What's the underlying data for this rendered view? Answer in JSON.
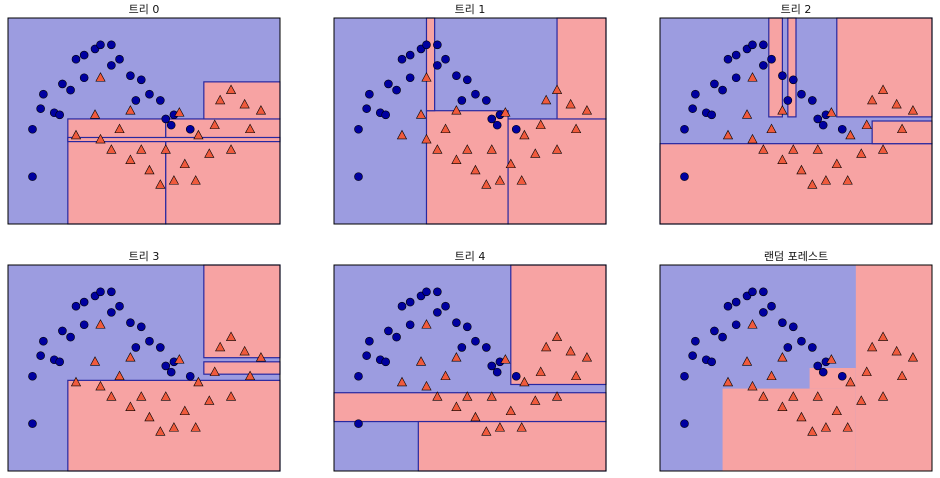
{
  "chart_data": [
    {
      "type": "scatter",
      "title": "트리 0",
      "xlim": [
        0,
        100
      ],
      "ylim": [
        0,
        100
      ],
      "background": "#9c9ce0",
      "region_color": "#f7a3a3",
      "edge_color": "#2828a0",
      "regions": [
        {
          "x": [
            22,
            58
          ],
          "y": [
            0,
            51
          ]
        },
        {
          "x": [
            58,
            100
          ],
          "y": [
            0,
            51
          ]
        },
        {
          "x": [
            72,
            100
          ],
          "y": [
            51,
            69
          ]
        },
        {
          "x": [
            22,
            100
          ],
          "y": [
            40,
            42
          ]
        }
      ],
      "series": [
        {
          "marker": "circle",
          "color": "#0000a0",
          "x": [
            9,
            9,
            12,
            13,
            17,
            20,
            23,
            25,
            28,
            32,
            34,
            38,
            41,
            45,
            49,
            52,
            56,
            58,
            60,
            61,
            67,
            19,
            38,
            47,
            28
          ],
          "y": [
            23,
            46,
            56,
            63,
            54,
            68,
            65,
            80,
            82,
            85,
            87,
            87,
            80,
            72,
            70,
            63,
            60,
            51,
            48,
            53,
            46,
            53,
            77,
            60,
            71
          ]
        },
        {
          "marker": "triangle",
          "color": "#f05a3c",
          "x": [
            34,
            45,
            63,
            78,
            82,
            87,
            93,
            76,
            70,
            74,
            65,
            61,
            56,
            52,
            45,
            38,
            34,
            41,
            25,
            32,
            49,
            58,
            69,
            82,
            89
          ],
          "y": [
            71,
            55,
            54,
            60,
            65,
            58,
            55,
            48,
            43,
            34,
            29,
            21,
            19,
            26,
            31,
            36,
            41,
            46,
            43,
            53,
            36,
            36,
            21,
            36,
            46
          ]
        }
      ]
    },
    {
      "type": "scatter",
      "title": "트리 1",
      "xlim": [
        0,
        100
      ],
      "ylim": [
        0,
        100
      ],
      "background": "#9c9ce0",
      "region_color": "#f7a3a3",
      "edge_color": "#2828a0",
      "regions": [
        {
          "x": [
            34,
            64
          ],
          "y": [
            0,
            55
          ]
        },
        {
          "x": [
            64,
            100
          ],
          "y": [
            0,
            51
          ]
        },
        {
          "x": [
            82,
            100
          ],
          "y": [
            51,
            100
          ]
        },
        {
          "x": [
            34,
            37
          ],
          "y": [
            55,
            100
          ]
        }
      ],
      "series": [
        {
          "marker": "circle",
          "color": "#0000a0",
          "x": [
            9,
            9,
            12,
            13,
            17,
            20,
            23,
            25,
            28,
            32,
            34,
            38,
            41,
            45,
            49,
            52,
            56,
            58,
            60,
            61,
            67,
            19,
            38,
            47,
            28
          ],
          "y": [
            23,
            46,
            56,
            63,
            54,
            68,
            65,
            80,
            82,
            85,
            87,
            87,
            80,
            72,
            70,
            63,
            60,
            51,
            48,
            53,
            46,
            53,
            77,
            60,
            71
          ]
        },
        {
          "marker": "triangle",
          "color": "#f05a3c",
          "x": [
            34,
            45,
            63,
            78,
            82,
            87,
            93,
            76,
            70,
            74,
            65,
            61,
            56,
            52,
            45,
            38,
            34,
            41,
            25,
            32,
            49,
            58,
            69,
            82,
            89
          ],
          "y": [
            71,
            55,
            54,
            60,
            65,
            58,
            55,
            48,
            43,
            34,
            29,
            21,
            19,
            26,
            31,
            36,
            41,
            46,
            43,
            53,
            36,
            36,
            21,
            36,
            46
          ]
        }
      ]
    },
    {
      "type": "scatter",
      "title": "트리 2",
      "xlim": [
        0,
        100
      ],
      "ylim": [
        0,
        100
      ],
      "background": "#9c9ce0",
      "region_color": "#f7a3a3",
      "edge_color": "#2828a0",
      "regions": [
        {
          "x": [
            65,
            100
          ],
          "y": [
            52,
            100
          ]
        },
        {
          "x": [
            0,
            100
          ],
          "y": [
            0,
            39
          ]
        },
        {
          "x": [
            78,
            100
          ],
          "y": [
            39,
            50
          ]
        },
        {
          "x": [
            40,
            45
          ],
          "y": [
            52,
            100
          ]
        },
        {
          "x": [
            47,
            50
          ],
          "y": [
            52,
            100
          ]
        }
      ],
      "series": [
        {
          "marker": "circle",
          "color": "#0000a0",
          "x": [
            9,
            9,
            12,
            13,
            17,
            20,
            23,
            25,
            28,
            32,
            34,
            38,
            41,
            45,
            49,
            52,
            56,
            58,
            60,
            61,
            67,
            19,
            38,
            47,
            28
          ],
          "y": [
            23,
            46,
            56,
            63,
            54,
            68,
            65,
            80,
            82,
            85,
            87,
            87,
            80,
            72,
            70,
            63,
            60,
            51,
            48,
            53,
            46,
            53,
            77,
            60,
            71
          ]
        },
        {
          "marker": "triangle",
          "color": "#f05a3c",
          "x": [
            34,
            45,
            63,
            78,
            82,
            87,
            93,
            76,
            70,
            74,
            65,
            61,
            56,
            52,
            45,
            38,
            34,
            41,
            25,
            32,
            49,
            58,
            69,
            82,
            89
          ],
          "y": [
            71,
            55,
            54,
            60,
            65,
            58,
            55,
            48,
            43,
            34,
            29,
            21,
            19,
            26,
            31,
            36,
            41,
            46,
            43,
            53,
            36,
            36,
            21,
            36,
            46
          ]
        }
      ]
    },
    {
      "type": "scatter",
      "title": "트리 3",
      "xlim": [
        0,
        100
      ],
      "ylim": [
        0,
        100
      ],
      "background": "#9c9ce0",
      "region_color": "#f7a3a3",
      "edge_color": "#2828a0",
      "regions": [
        {
          "x": [
            72,
            100
          ],
          "y": [
            55,
            100
          ]
        },
        {
          "x": [
            22,
            100
          ],
          "y": [
            0,
            44
          ]
        },
        {
          "x": [
            72,
            100
          ],
          "y": [
            47,
            53
          ]
        }
      ],
      "series": [
        {
          "marker": "circle",
          "color": "#0000a0",
          "x": [
            9,
            9,
            12,
            13,
            17,
            20,
            23,
            25,
            28,
            32,
            34,
            38,
            41,
            45,
            49,
            52,
            56,
            58,
            60,
            61,
            67,
            19,
            38,
            47,
            28
          ],
          "y": [
            23,
            46,
            56,
            63,
            54,
            68,
            65,
            80,
            82,
            85,
            87,
            87,
            80,
            72,
            70,
            63,
            60,
            51,
            48,
            53,
            46,
            53,
            77,
            60,
            71
          ]
        },
        {
          "marker": "triangle",
          "color": "#f05a3c",
          "x": [
            34,
            45,
            63,
            78,
            82,
            87,
            93,
            76,
            70,
            74,
            65,
            61,
            56,
            52,
            45,
            38,
            34,
            41,
            25,
            32,
            49,
            58,
            69,
            82,
            89
          ],
          "y": [
            71,
            55,
            54,
            60,
            65,
            58,
            55,
            48,
            43,
            34,
            29,
            21,
            19,
            26,
            31,
            36,
            41,
            46,
            43,
            53,
            36,
            36,
            21,
            36,
            46
          ]
        }
      ]
    },
    {
      "type": "scatter",
      "title": "트리 4",
      "xlim": [
        0,
        100
      ],
      "ylim": [
        0,
        100
      ],
      "background": "#9c9ce0",
      "region_color": "#f7a3a3",
      "edge_color": "#2828a0",
      "regions": [
        {
          "x": [
            65,
            100
          ],
          "y": [
            42,
            100
          ]
        },
        {
          "x": [
            0,
            100
          ],
          "y": [
            24,
            38
          ]
        },
        {
          "x": [
            31,
            100
          ],
          "y": [
            0,
            24
          ]
        }
      ],
      "series": [
        {
          "marker": "circle",
          "color": "#0000a0",
          "x": [
            9,
            9,
            12,
            13,
            17,
            20,
            23,
            25,
            28,
            32,
            34,
            38,
            41,
            45,
            49,
            52,
            56,
            58,
            60,
            61,
            67,
            19,
            38,
            47,
            28
          ],
          "y": [
            23,
            46,
            56,
            63,
            54,
            68,
            65,
            80,
            82,
            85,
            87,
            87,
            80,
            72,
            70,
            63,
            60,
            51,
            48,
            53,
            46,
            53,
            77,
            60,
            71
          ]
        },
        {
          "marker": "triangle",
          "color": "#f05a3c",
          "x": [
            34,
            45,
            63,
            78,
            82,
            87,
            93,
            76,
            70,
            74,
            65,
            61,
            56,
            52,
            45,
            38,
            34,
            41,
            25,
            32,
            49,
            58,
            69,
            82,
            89
          ],
          "y": [
            71,
            55,
            54,
            60,
            65,
            58,
            55,
            48,
            43,
            34,
            29,
            21,
            19,
            26,
            31,
            36,
            41,
            46,
            43,
            53,
            36,
            36,
            21,
            36,
            46
          ]
        }
      ]
    },
    {
      "type": "scatter",
      "title": "랜덤 포레스트",
      "xlim": [
        0,
        100
      ],
      "ylim": [
        0,
        100
      ],
      "background": "#9c9ce0",
      "region_color": "#f7a3a3",
      "edge_color": "none",
      "regions": [
        {
          "x": [
            72,
            100
          ],
          "y": [
            0,
            100
          ]
        },
        {
          "x": [
            23,
            72
          ],
          "y": [
            0,
            40
          ]
        },
        {
          "x": [
            55,
            72
          ],
          "y": [
            40,
            50
          ]
        }
      ],
      "series": [
        {
          "marker": "circle",
          "color": "#0000a0",
          "x": [
            9,
            9,
            12,
            13,
            17,
            20,
            23,
            25,
            28,
            32,
            34,
            38,
            41,
            45,
            49,
            52,
            56,
            58,
            60,
            61,
            67,
            19,
            38,
            47,
            28
          ],
          "y": [
            23,
            46,
            56,
            63,
            54,
            68,
            65,
            80,
            82,
            85,
            87,
            87,
            80,
            72,
            70,
            63,
            60,
            51,
            48,
            53,
            46,
            53,
            77,
            60,
            71
          ]
        },
        {
          "marker": "triangle",
          "color": "#f05a3c",
          "x": [
            34,
            45,
            63,
            78,
            82,
            87,
            93,
            76,
            70,
            74,
            65,
            61,
            56,
            52,
            45,
            38,
            34,
            41,
            25,
            32,
            49,
            58,
            69,
            82,
            89
          ],
          "y": [
            71,
            55,
            54,
            60,
            65,
            58,
            55,
            48,
            43,
            34,
            29,
            21,
            19,
            26,
            31,
            36,
            41,
            46,
            43,
            53,
            36,
            36,
            21,
            36,
            46
          ]
        }
      ]
    }
  ]
}
